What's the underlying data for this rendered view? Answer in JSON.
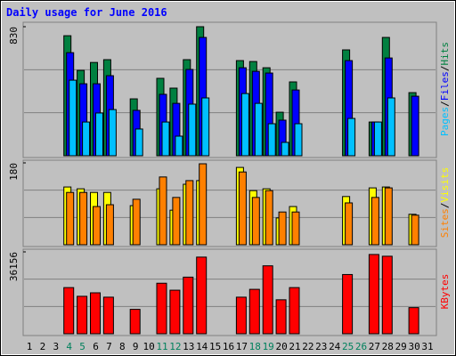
{
  "chart_data": [
    {
      "type": "bar",
      "title": "Daily usage for June 2016",
      "ylim": [
        0,
        830
      ],
      "yticks": [
        830
      ],
      "series": [
        {
          "name": "Hits",
          "color": "#008040",
          "values": [
            null,
            null,
            null,
            772,
            549,
            600,
            618,
            null,
            366,
            null,
            498,
            435,
            618,
            830,
            null,
            null,
            612,
            606,
            566,
            280,
            475,
            null,
            null,
            null,
            681,
            null,
            217,
            761,
            null,
            406,
            null
          ]
        },
        {
          "name": "Files",
          "color": "#0000ff",
          "values": [
            null,
            null,
            null,
            663,
            463,
            463,
            515,
            null,
            292,
            null,
            395,
            337,
            555,
            761,
            null,
            null,
            566,
            543,
            532,
            229,
            423,
            null,
            null,
            null,
            612,
            null,
            217,
            629,
            null,
            383,
            null
          ]
        },
        {
          "name": "Pages",
          "color": "#00c0ff",
          "values": [
            null,
            null,
            null,
            486,
            217,
            275,
            297,
            null,
            172,
            null,
            217,
            126,
            332,
            372,
            null,
            null,
            400,
            337,
            206,
            86,
            206,
            null,
            null,
            null,
            240,
            null,
            217,
            372,
            null,
            0,
            null
          ]
        }
      ]
    },
    {
      "type": "bar",
      "ylim": [
        0,
        180
      ],
      "yticks": [
        180
      ],
      "series": [
        {
          "name": "Visits",
          "color": "#ffff00",
          "values": [
            null,
            null,
            null,
            127,
            123,
            115,
            115,
            null,
            86,
            null,
            123,
            76,
            133,
            141,
            null,
            null,
            170,
            119,
            123,
            59,
            84,
            null,
            null,
            null,
            106,
            null,
            125,
            127,
            null,
            67,
            null
          ]
        },
        {
          "name": "Sites",
          "color": "#ff8000",
          "values": [
            null,
            null,
            null,
            115,
            115,
            84,
            88,
            null,
            100,
            null,
            149,
            104,
            141,
            178,
            null,
            null,
            160,
            104,
            119,
            72,
            72,
            null,
            null,
            null,
            92,
            null,
            104,
            125,
            null,
            65,
            null
          ]
        }
      ]
    },
    {
      "type": "bar",
      "ylim": [
        0,
        36156
      ],
      "yticks": [
        36156
      ],
      "categories": [
        "1",
        "2",
        "3",
        "4",
        "5",
        "6",
        "7",
        "8",
        "9",
        "10",
        "11",
        "12",
        "13",
        "14",
        "15",
        "16",
        "17",
        "18",
        "19",
        "20",
        "21",
        "22",
        "23",
        "24",
        "25",
        "26",
        "27",
        "28",
        "29",
        "30",
        "31"
      ],
      "category_colors": [
        "#000000",
        "#000000",
        "#000000",
        "#00805c",
        "#00805c",
        "#000000",
        "#000000",
        "#000000",
        "#000000",
        "#000000",
        "#00805c",
        "#00805c",
        "#000000",
        "#000000",
        "#000000",
        "#000000",
        "#000000",
        "#00805c",
        "#00805c",
        "#000000",
        "#000000",
        "#000000",
        "#000000",
        "#000000",
        "#00805c",
        "#00805c",
        "#000000",
        "#000000",
        "#000000",
        "#000000",
        "#000000"
      ],
      "series": [
        {
          "name": "KBytes",
          "color": "#ff0000",
          "values": [
            null,
            null,
            null,
            20384,
            16538,
            18076,
            16153,
            null,
            10769,
            null,
            22307,
            19230,
            24999,
            33845,
            null,
            null,
            16153,
            19615,
            29999,
            15000,
            20384,
            null,
            null,
            null,
            26153,
            null,
            35002,
            34229,
            null,
            11538,
            null
          ]
        }
      ]
    }
  ]
}
